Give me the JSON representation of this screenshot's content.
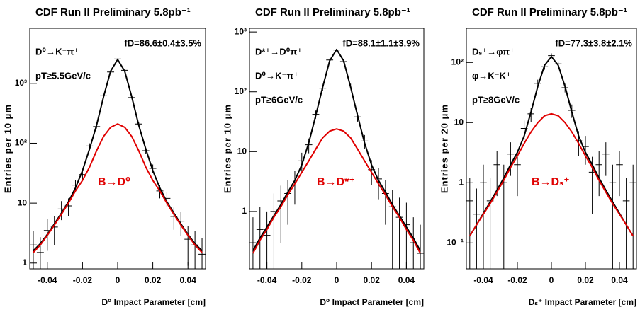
{
  "chart_data": [
    {
      "type": "line",
      "title": "CDF Run II Preliminary 5.8pb⁻¹",
      "xlabel": "D⁰ Impact Parameter [cm]",
      "ylabel": "Entries per 10 μm",
      "fit_label": "fD=86.6±0.4±3.5%",
      "decay_labels": [
        "D⁰→K⁻π⁺",
        "pT≥5.5GeV/c"
      ],
      "component_label": "B→D⁰",
      "yscale": "log",
      "xlim": [
        -0.05,
        0.05
      ],
      "ylim": [
        0.8,
        8300
      ],
      "xticks": [
        -0.04,
        -0.02,
        0,
        0.02,
        0.04
      ],
      "yticks": [
        1,
        10,
        {
          "value": 100,
          "label": "10²"
        },
        {
          "value": 1000,
          "label": "10³"
        }
      ],
      "x": [
        -0.048,
        -0.044,
        -0.04,
        -0.036,
        -0.032,
        -0.028,
        -0.024,
        -0.02,
        -0.016,
        -0.012,
        -0.008,
        -0.004,
        0,
        0.004,
        0.008,
        0.012,
        0.016,
        0.02,
        0.024,
        0.028,
        0.032,
        0.036,
        0.04,
        0.044,
        0.048
      ],
      "series": [
        {
          "color": "#000000",
          "values": [
            2,
            1.5,
            3.5,
            4,
            8,
            9,
            20,
            30,
            90,
            190,
            620,
            1550,
            2550,
            1650,
            580,
            210,
            75,
            38,
            16,
            12,
            6,
            5,
            2.5,
            2,
            1.4
          ],
          "errors": [
            1.4,
            1.2,
            1.9,
            2,
            2.8,
            3,
            4.5,
            5.5,
            9.5,
            14,
            25,
            39,
            50,
            40,
            24,
            14.5,
            8.7,
            6.2,
            4,
            3.5,
            2.4,
            2.2,
            1.6,
            1.4,
            1.2
          ]
        },
        {
          "color": "#000000",
          "values": [
            1.6,
            2.1,
            3,
            4.5,
            6.8,
            10.5,
            18,
            35,
            80,
            200,
            600,
            1600,
            2500,
            1600,
            600,
            200,
            80,
            35,
            18,
            10.5,
            6.8,
            4.5,
            3,
            2.1,
            1.6
          ]
        },
        {
          "color": "#e00000",
          "values": [
            1.5,
            2,
            2.9,
            4.3,
            6.5,
            10,
            16,
            24,
            40,
            75,
            130,
            185,
            210,
            185,
            130,
            75,
            40,
            24,
            16,
            10,
            6.5,
            4.3,
            2.9,
            2,
            1.5
          ]
        }
      ]
    },
    {
      "type": "line",
      "title": "CDF Run II Preliminary 5.8pb⁻¹",
      "xlabel": "D⁰ Impact Parameter [cm]",
      "ylabel": "Entries per 10 μm",
      "fit_label": "fD=88.1±1.1±3.9%",
      "decay_labels": [
        "D*⁺→D⁰π⁺",
        "D⁰→K⁻π⁺",
        "pT≥6GeV/c"
      ],
      "component_label": "B→D*⁺",
      "yscale": "log",
      "xlim": [
        -0.05,
        0.05
      ],
      "ylim": [
        0.11,
        1150
      ],
      "xticks": [
        -0.04,
        -0.02,
        0,
        0.02,
        0.04
      ],
      "yticks": [
        1,
        10,
        {
          "value": 100,
          "label": "10²"
        },
        {
          "value": 1000,
          "label": "10³"
        }
      ],
      "x": [
        -0.048,
        -0.044,
        -0.04,
        -0.036,
        -0.032,
        -0.028,
        -0.024,
        -0.02,
        -0.016,
        -0.012,
        -0.008,
        -0.004,
        0,
        0.004,
        0.008,
        0.012,
        0.016,
        0.02,
        0.024,
        0.028,
        0.032,
        0.036,
        0.04,
        0.044,
        0.048
      ],
      "series": [
        {
          "color": "#000000",
          "values": [
            0.3,
            0.5,
            0.4,
            1,
            1.5,
            2,
            3,
            7,
            13,
            42,
            115,
            340,
            500,
            320,
            125,
            38,
            15,
            5,
            3.5,
            2,
            1.2,
            0.8,
            0.6,
            0.3,
            0.2
          ],
          "errors": [
            0.5,
            0.7,
            0.6,
            1,
            1.2,
            1.4,
            1.7,
            2.6,
            3.6,
            6.5,
            11,
            18,
            22,
            18,
            11,
            6.2,
            3.9,
            2.2,
            1.9,
            1.4,
            1.1,
            0.9,
            0.8,
            0.5,
            0.4
          ]
        },
        {
          "color": "#000000",
          "values": [
            0.22,
            0.36,
            0.55,
            0.85,
            1.3,
            2.1,
            3.3,
            6,
            14,
            40,
            120,
            330,
            510,
            330,
            120,
            40,
            14,
            6,
            3.3,
            2.1,
            1.3,
            0.85,
            0.55,
            0.36,
            0.22
          ]
        },
        {
          "color": "#e00000",
          "values": [
            0.2,
            0.33,
            0.5,
            0.8,
            1.2,
            1.9,
            2.9,
            4.5,
            7,
            11,
            17,
            22,
            24,
            22,
            17,
            11,
            7,
            4.5,
            2.9,
            1.9,
            1.2,
            0.8,
            0.5,
            0.33,
            0.2
          ]
        }
      ]
    },
    {
      "type": "line",
      "title": "CDF Run II Preliminary 5.8pb⁻¹",
      "xlabel": "Dₛ⁺ Impact Parameter [cm]",
      "ylabel": "Entries per 20 μm",
      "fit_label": "fD=77.3±3.8±2.1%",
      "decay_labels": [
        "Dₛ⁺→φπ⁺",
        "φ→K⁻K⁺",
        "pT≥8GeV/c"
      ],
      "component_label": "B→Dₛ⁺",
      "yscale": "log",
      "xlim": [
        -0.05,
        0.05
      ],
      "ylim": [
        0.037,
        370
      ],
      "xticks": [
        -0.04,
        -0.02,
        0,
        0.02,
        0.04
      ],
      "yticks": [
        {
          "value": 0.1,
          "label": "10⁻¹"
        },
        1,
        10,
        {
          "value": 100,
          "label": "10²"
        }
      ],
      "x": [
        -0.048,
        -0.044,
        -0.04,
        -0.036,
        -0.032,
        -0.028,
        -0.024,
        -0.02,
        -0.016,
        -0.012,
        -0.008,
        -0.004,
        0,
        0.004,
        0.008,
        0.012,
        0.016,
        0.02,
        0.024,
        0.028,
        0.032,
        0.036,
        0.04,
        0.044,
        0.048
      ],
      "series": [
        {
          "color": "#000000",
          "values": [
            0.5,
            0.3,
            1,
            0.5,
            2,
            1,
            3,
            2,
            8,
            14,
            45,
            85,
            130,
            95,
            38,
            16,
            5,
            4,
            1.5,
            2,
            3,
            1,
            2,
            0.5,
            1
          ],
          "errors": [
            0.7,
            0.5,
            1,
            0.7,
            1.4,
            1,
            1.7,
            1.4,
            2.8,
            3.7,
            6.7,
            9.2,
            11.4,
            9.7,
            6.2,
            4,
            2.2,
            2,
            1.2,
            1.4,
            1.7,
            1,
            1.4,
            0.7,
            1
          ]
        },
        {
          "color": "#000000",
          "values": [
            0.13,
            0.2,
            0.31,
            0.48,
            0.75,
            1.2,
            2,
            3.2,
            6,
            15,
            40,
            90,
            125,
            90,
            40,
            15,
            6,
            3.2,
            2,
            1.2,
            0.75,
            0.48,
            0.31,
            0.2,
            0.13
          ]
        },
        {
          "color": "#e00000",
          "values": [
            0.13,
            0.2,
            0.3,
            0.45,
            0.7,
            1.1,
            1.8,
            2.8,
            4.5,
            7,
            10,
            13,
            14,
            13,
            10,
            7,
            4.5,
            2.8,
            1.8,
            1.1,
            0.7,
            0.45,
            0.3,
            0.2,
            0.13
          ]
        }
      ]
    }
  ]
}
